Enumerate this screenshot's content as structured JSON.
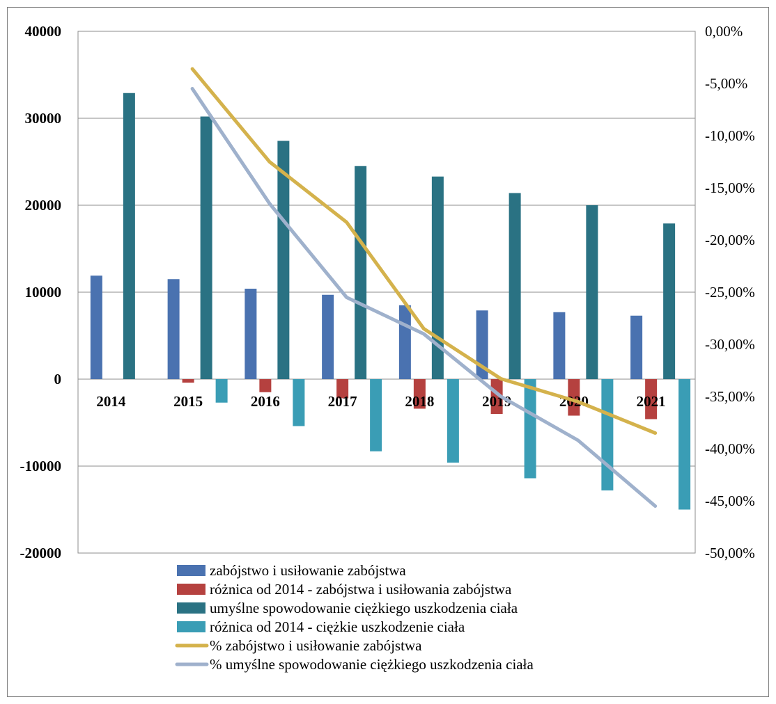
{
  "chart_data": {
    "type": "bar",
    "categories": [
      "2014",
      "2015",
      "2016",
      "2017",
      "2018",
      "2019",
      "2020",
      "2021"
    ],
    "y_left": {
      "ylim": [
        -20000,
        40000
      ],
      "ticks": [
        {
          "value": 40000,
          "label": "40000"
        },
        {
          "value": 30000,
          "label": "30000"
        },
        {
          "value": 20000,
          "label": "20000"
        },
        {
          "value": 10000,
          "label": "10000"
        },
        {
          "value": 0,
          "label": "0"
        },
        {
          "value": -10000,
          "label": "-10000"
        },
        {
          "value": -20000,
          "label": "-20000"
        }
      ]
    },
    "y_right": {
      "ylim": [
        -0.5,
        0
      ],
      "ticks": [
        {
          "value": 0,
          "label": "0,00%"
        },
        {
          "value": -0.05,
          "label": "-5,00%"
        },
        {
          "value": -0.1,
          "label": "-10,00%"
        },
        {
          "value": -0.15,
          "label": "-15,00%"
        },
        {
          "value": -0.2,
          "label": "-20,00%"
        },
        {
          "value": -0.25,
          "label": "-25,00%"
        },
        {
          "value": -0.3,
          "label": "-30,00%"
        },
        {
          "value": -0.35,
          "label": "-35,00%"
        },
        {
          "value": -0.4,
          "label": "-40,00%"
        },
        {
          "value": -0.45,
          "label": "-45,00%"
        },
        {
          "value": -0.5,
          "label": "-50,00%"
        }
      ]
    },
    "grid": true,
    "legend_position": "bottom",
    "bar_series": [
      {
        "name": "zabójstwo i usiłowanie zabójstwa",
        "color": "#4a72b0",
        "values": [
          11900,
          11500,
          10400,
          9700,
          8500,
          7900,
          7700,
          7300
        ]
      },
      {
        "name": "różnica od 2014 - zabójstwa i usiłowania zabójstwa",
        "color": "#b5413f",
        "values": [
          0,
          -400,
          -1500,
          -2200,
          -3400,
          -4000,
          -4200,
          -4600
        ]
      },
      {
        "name": "umyślne spowodowanie ciężkiego uszkodzenia ciała",
        "color": "#2a7283",
        "values": [
          32900,
          30200,
          27400,
          24500,
          23300,
          21400,
          20000,
          17900
        ]
      },
      {
        "name": "różnica od 2014 - ciężkie uszkodzenie ciała",
        "color": "#3a9db5",
        "values": [
          0,
          -2700,
          -5400,
          -8300,
          -9600,
          -11400,
          -12800,
          -15000
        ]
      }
    ],
    "line_series": [
      {
        "name": "% zabójstwo i usiłowanie zabójstwa",
        "color": "#d4b24c",
        "axis": "right",
        "x": [
          "2015",
          "2016",
          "2017",
          "2018",
          "2019",
          "2020",
          "2021"
        ],
        "values": [
          -0.036,
          -0.125,
          -0.183,
          -0.285,
          -0.333,
          -0.355,
          -0.385
        ]
      },
      {
        "name": "% umyślne spowodowanie ciężkiego uszkodzenia ciała",
        "color": "#9fb1cc",
        "axis": "right",
        "x": [
          "2015",
          "2016",
          "2017",
          "2018",
          "2019",
          "2020",
          "2021"
        ],
        "values": [
          -0.055,
          -0.165,
          -0.255,
          -0.29,
          -0.35,
          -0.392,
          -0.455
        ]
      }
    ]
  }
}
